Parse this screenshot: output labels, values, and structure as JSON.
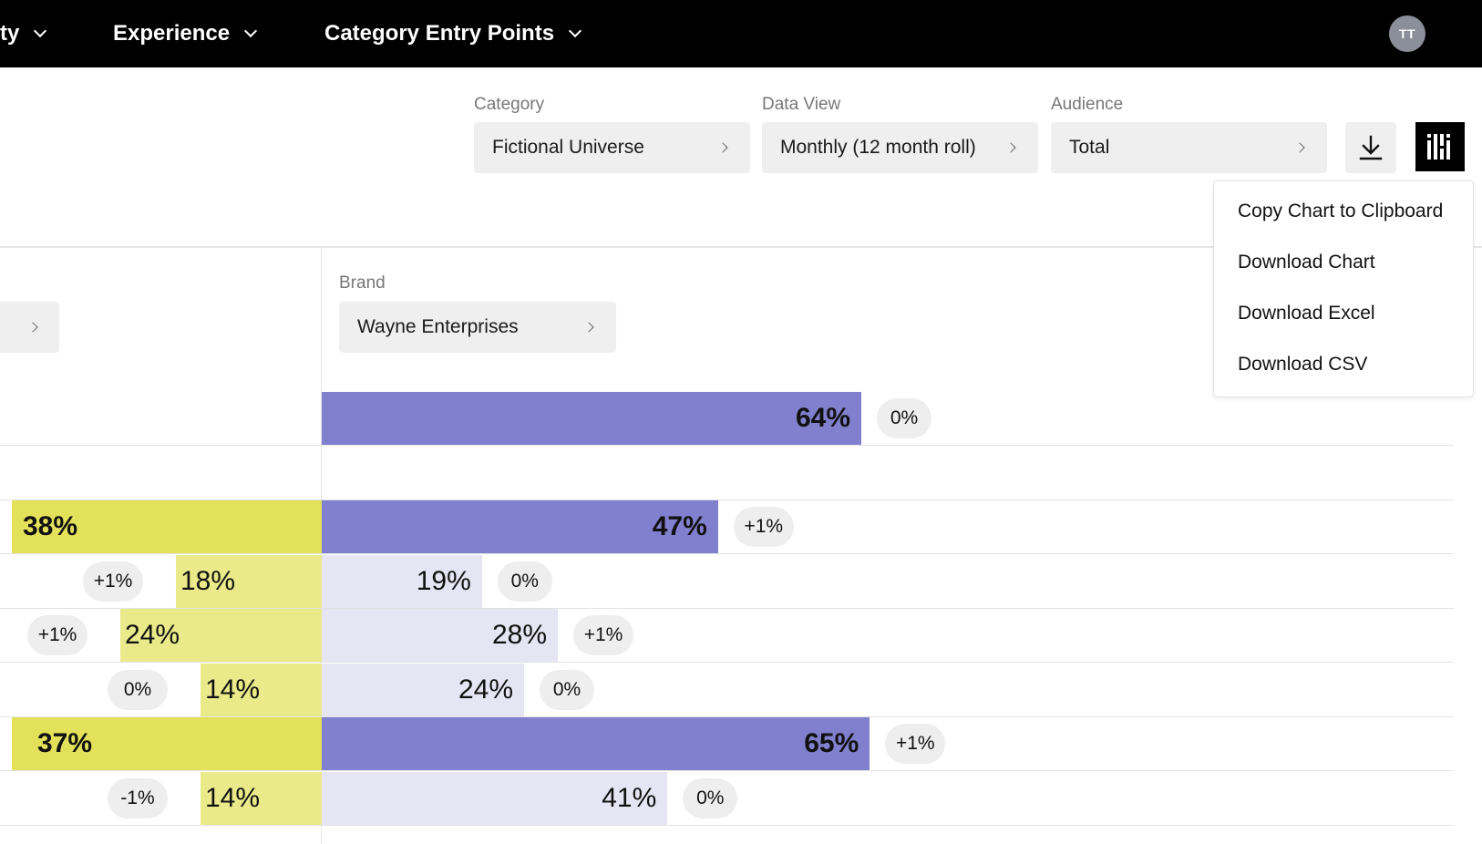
{
  "nav": {
    "items": [
      {
        "label": "ty"
      },
      {
        "label": "Experience"
      },
      {
        "label": "Category Entry Points"
      }
    ],
    "avatar_initials": "TT"
  },
  "filters": {
    "category": {
      "label": "Category",
      "value": "Fictional Universe"
    },
    "data_view": {
      "label": "Data View",
      "value": "Monthly (12 month roll)"
    },
    "audience": {
      "label": "Audience",
      "value": "Total"
    }
  },
  "download_menu": {
    "items": [
      "Copy Chart to Clipboard",
      "Download Chart",
      "Download Excel",
      "Download CSV"
    ]
  },
  "panel": {
    "brand_label": "Brand",
    "brand_value": "Wayne Enterprises"
  },
  "colors": {
    "left_strong": "#e3e15a",
    "left_light": "#eaea8a",
    "right_strong": "#8080cf",
    "right_light": "#e6e5f3"
  },
  "chart_data": {
    "type": "bar",
    "rows": [
      {
        "left": {
          "value": "",
          "change": "",
          "strong": true
        },
        "right": {
          "value": "64%",
          "change": "0%",
          "strong": true
        }
      },
      {
        "left": null,
        "right": null
      },
      {
        "left": {
          "value": "38%",
          "change": "",
          "strong": true
        },
        "right": {
          "value": "47%",
          "change": "+1%",
          "strong": true
        }
      },
      {
        "left": {
          "value": "18%",
          "change": "+1%",
          "strong": false
        },
        "right": {
          "value": "19%",
          "change": "0%",
          "strong": false
        }
      },
      {
        "left": {
          "value": "24%",
          "change": "+1%",
          "strong": false
        },
        "right": {
          "value": "28%",
          "change": "+1%",
          "strong": false
        }
      },
      {
        "left": {
          "value": "14%",
          "change": "0%",
          "strong": false
        },
        "right": {
          "value": "24%",
          "change": "0%",
          "strong": false
        }
      },
      {
        "left": {
          "value": "37%",
          "change": "",
          "strong": true
        },
        "right": {
          "value": "65%",
          "change": "+1%",
          "strong": true
        }
      },
      {
        "left": {
          "value": "14%",
          "change": "-1%",
          "strong": false
        },
        "right": {
          "value": "41%",
          "change": "0%",
          "strong": false
        }
      }
    ]
  }
}
